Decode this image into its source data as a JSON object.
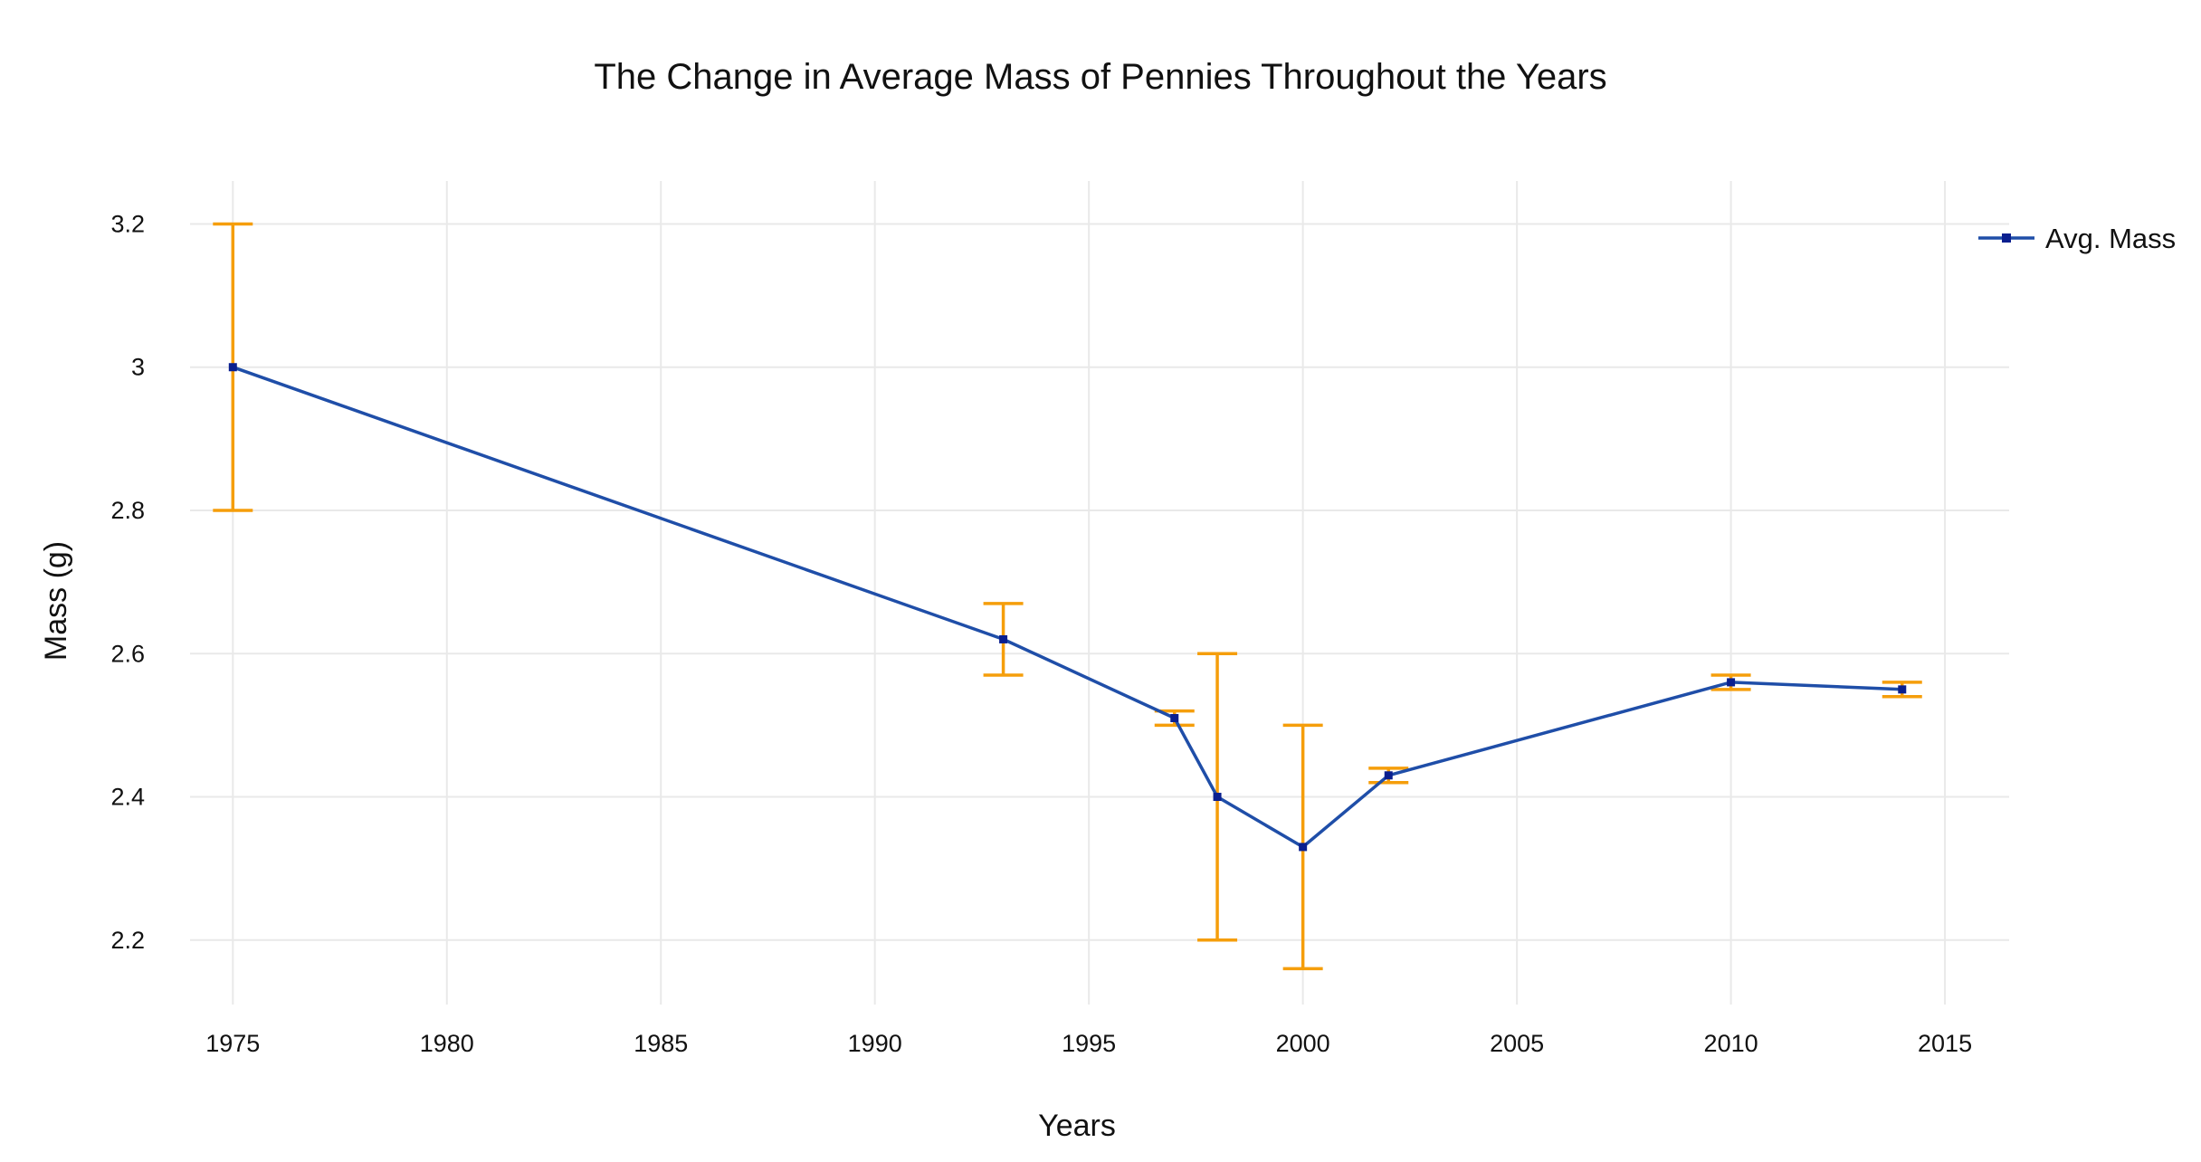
{
  "chart_data": {
    "type": "line",
    "title": "The Change in Average Mass of Pennies Throughout the Years",
    "xlabel": "Years",
    "ylabel": "Mass (g)",
    "xlim": [
      1974,
      2016.5
    ],
    "ylim": [
      2.11,
      3.26
    ],
    "x_ticks": [
      "1975",
      "1980",
      "1985",
      "1990",
      "1995",
      "2000",
      "2005",
      "2010",
      "2015"
    ],
    "y_ticks": [
      "2.2",
      "2.4",
      "2.6",
      "2.8",
      "3",
      "3.2"
    ],
    "grid": true,
    "legend_position": "top-right",
    "series": [
      {
        "name": "Avg. Mass",
        "color": "#1f4ea8",
        "marker_color": "#0a1f8f",
        "error_color": "#f59e0b",
        "x": [
          1975,
          1993,
          1997,
          1998,
          2000,
          2002,
          2010,
          2014
        ],
        "y": [
          3.0,
          2.62,
          2.51,
          2.4,
          2.33,
          2.43,
          2.56,
          2.55
        ],
        "error_low": [
          2.8,
          2.57,
          2.5,
          2.2,
          2.16,
          2.42,
          2.55,
          2.54
        ],
        "error_high": [
          3.2,
          2.67,
          2.52,
          2.6,
          2.5,
          2.44,
          2.57,
          2.56
        ]
      }
    ]
  }
}
